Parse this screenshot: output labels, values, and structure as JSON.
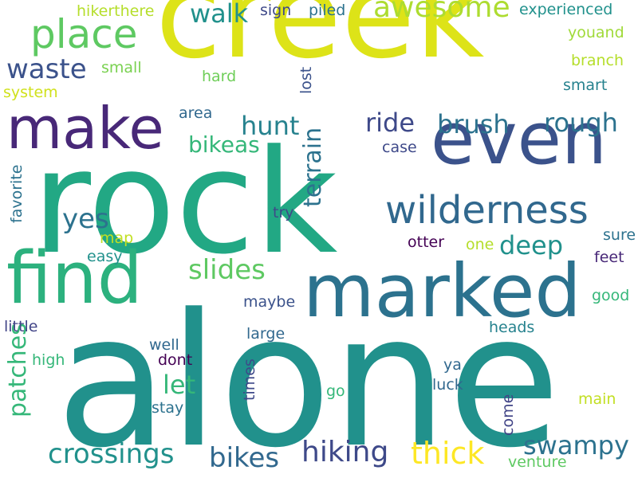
{
  "word_cloud": {
    "words": [
      {
        "text": "alone",
        "color": "#21918c",
        "vertical": false
      },
      {
        "text": "rock",
        "color": "#22a884",
        "vertical": false
      },
      {
        "text": "creek",
        "color": "#dde318",
        "vertical": false
      },
      {
        "text": "marked",
        "color": "#2c728e",
        "vertical": false
      },
      {
        "text": "find",
        "color": "#2cb17e",
        "vertical": false
      },
      {
        "text": "even",
        "color": "#3b528b",
        "vertical": false
      },
      {
        "text": "make",
        "color": "#482878",
        "vertical": false
      },
      {
        "text": "wilderness",
        "color": "#31688e",
        "vertical": false
      },
      {
        "text": "place",
        "color": "#5ec962",
        "vertical": false
      },
      {
        "text": "thick",
        "color": "#fde725",
        "vertical": false
      },
      {
        "text": "hiking",
        "color": "#3e4989",
        "vertical": false
      },
      {
        "text": "crossings",
        "color": "#21918c",
        "vertical": false
      },
      {
        "text": "bikes",
        "color": "#31688e",
        "vertical": false
      },
      {
        "text": "swampy",
        "color": "#2c728e",
        "vertical": false
      },
      {
        "text": "awesome",
        "color": "#addc30",
        "vertical": false
      },
      {
        "text": "waste",
        "color": "#3b528b",
        "vertical": false
      },
      {
        "text": "terrain",
        "color": "#2c728e",
        "vertical": true
      },
      {
        "text": "patches",
        "color": "#35b779",
        "vertical": true
      },
      {
        "text": "slides",
        "color": "#5ec962",
        "vertical": false
      },
      {
        "text": "brush",
        "color": "#2c728e",
        "vertical": false
      },
      {
        "text": "rough",
        "color": "#2c728e",
        "vertical": false
      },
      {
        "text": "deep",
        "color": "#21918c",
        "vertical": false
      },
      {
        "text": "hunt",
        "color": "#26828e",
        "vertical": false
      },
      {
        "text": "ride",
        "color": "#3e4989",
        "vertical": false
      },
      {
        "text": "walk",
        "color": "#21918c",
        "vertical": false
      },
      {
        "text": "bikeas",
        "color": "#35b779",
        "vertical": false
      },
      {
        "text": "let",
        "color": "#35b779",
        "vertical": false
      },
      {
        "text": "yes",
        "color": "#2c728e",
        "vertical": false
      },
      {
        "text": "hikerthere",
        "color": "#b5de2b",
        "vertical": false
      },
      {
        "text": "sign",
        "color": "#3e4989",
        "vertical": false
      },
      {
        "text": "piled",
        "color": "#2c728e",
        "vertical": false
      },
      {
        "text": "experienced",
        "color": "#21918c",
        "vertical": false
      },
      {
        "text": "youand",
        "color": "#a0da39",
        "vertical": false
      },
      {
        "text": "branch",
        "color": "#b5de2b",
        "vertical": false
      },
      {
        "text": "smart",
        "color": "#26828e",
        "vertical": false
      },
      {
        "text": "small",
        "color": "#7ad151",
        "vertical": false
      },
      {
        "text": "hard",
        "color": "#6ece58",
        "vertical": false
      },
      {
        "text": "system",
        "color": "#d0e11c",
        "vertical": false
      },
      {
        "text": "lost",
        "color": "#3b528b",
        "vertical": true
      },
      {
        "text": "area",
        "color": "#31688e",
        "vertical": false
      },
      {
        "text": "case",
        "color": "#3e4989",
        "vertical": false
      },
      {
        "text": "favorite",
        "color": "#2c728e",
        "vertical": true
      },
      {
        "text": "try",
        "color": "#3e4989",
        "vertical": false
      },
      {
        "text": "map",
        "color": "#c2df23",
        "vertical": false
      },
      {
        "text": "easy",
        "color": "#21918c",
        "vertical": false
      },
      {
        "text": "otter",
        "color": "#440154",
        "vertical": false
      },
      {
        "text": "one",
        "color": "#b5de2b",
        "vertical": false
      },
      {
        "text": "sure",
        "color": "#2c728e",
        "vertical": false
      },
      {
        "text": "feet",
        "color": "#482878",
        "vertical": false
      },
      {
        "text": "maybe",
        "color": "#3b528b",
        "vertical": false
      },
      {
        "text": "good",
        "color": "#35b779",
        "vertical": false
      },
      {
        "text": "little",
        "color": "#414487",
        "vertical": false
      },
      {
        "text": "large",
        "color": "#31688e",
        "vertical": false
      },
      {
        "text": "heads",
        "color": "#26828e",
        "vertical": false
      },
      {
        "text": "well",
        "color": "#31688e",
        "vertical": false
      },
      {
        "text": "high",
        "color": "#35b779",
        "vertical": false
      },
      {
        "text": "dont",
        "color": "#440154",
        "vertical": false
      },
      {
        "text": "ya",
        "color": "#31688e",
        "vertical": false
      },
      {
        "text": "times",
        "color": "#3e4989",
        "vertical": true
      },
      {
        "text": "luck",
        "color": "#31688e",
        "vertical": false
      },
      {
        "text": "go",
        "color": "#35b779",
        "vertical": false
      },
      {
        "text": "stay",
        "color": "#2c728e",
        "vertical": false
      },
      {
        "text": "come",
        "color": "#414487",
        "vertical": true
      },
      {
        "text": "main",
        "color": "#c2df23",
        "vertical": false
      },
      {
        "text": "venture",
        "color": "#5ec962",
        "vertical": false
      }
    ]
  }
}
